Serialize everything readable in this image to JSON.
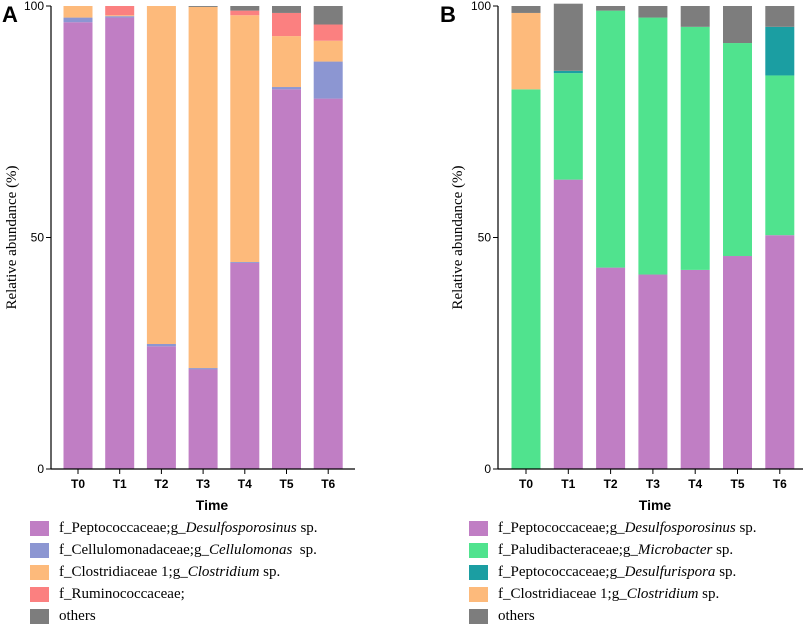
{
  "colors": {
    "purple": "#c07ec4",
    "blue": "#8c96d2",
    "orange": "#fdba7b",
    "red": "#fb8080",
    "gray": "#7d7d7d",
    "green": "#50e38e",
    "teal": "#1b9ea2"
  },
  "chart_data": [
    {
      "type": "bar",
      "stacked": true,
      "panel": "A",
      "xlabel": "Time",
      "ylabel": "Relative abundance (%)",
      "ylim": [
        0,
        100
      ],
      "yticks": [
        "0",
        "50",
        "100"
      ],
      "categories": [
        "T0",
        "T1",
        "T2",
        "T3",
        "T4",
        "T5",
        "T6"
      ],
      "series": [
        {
          "name": "f_Peptococcaceae;g_Desulfosporosinus sp.",
          "prefix": "f_Peptococcaceae;g_",
          "genus": "Desulfosporosinus",
          "suffix": " sp.",
          "color": "purple",
          "values": [
            96.5,
            97.5,
            26.5,
            21.5,
            44.5,
            82,
            80
          ]
        },
        {
          "name": "f_Cellulomonadaceae;g_Cellulomonas sp.",
          "prefix": "f_Cellulomonadaceae;g_",
          "genus": "Cellulomonas",
          "suffix": "  sp.",
          "color": "blue",
          "values": [
            1,
            0.3,
            0.5,
            0.3,
            0.2,
            0.5,
            8
          ]
        },
        {
          "name": "f_Clostridiaceae 1;g_Clostridium sp.",
          "prefix": "f_Clostridiaceae 1;g_",
          "genus": "Clostridium",
          "suffix": " sp.",
          "color": "orange",
          "values": [
            2.5,
            0.2,
            73,
            78,
            53.3,
            11,
            4.5
          ]
        },
        {
          "name": "f_Ruminococcaceae;",
          "prefix": "f_Ruminococcaceae;",
          "genus": "",
          "suffix": "",
          "color": "red",
          "values": [
            0,
            2,
            0,
            0,
            1,
            5,
            3.5
          ]
        },
        {
          "name": "others",
          "prefix": "others",
          "genus": "",
          "suffix": "",
          "color": "gray",
          "values": [
            0,
            0,
            0,
            0.2,
            1,
            1.5,
            4
          ]
        }
      ]
    },
    {
      "type": "bar",
      "stacked": true,
      "panel": "B",
      "xlabel": "Time",
      "ylabel": "Relative abundance (%)",
      "ylim": [
        0,
        100
      ],
      "yticks": [
        "0",
        "50",
        "100"
      ],
      "categories": [
        "T0",
        "T1",
        "T2",
        "T3",
        "T4",
        "T5",
        "T6"
      ],
      "series": [
        {
          "name": "f_Peptococcaceae;g_Desulfosporosinus sp.",
          "prefix": "f_Peptococcaceae;g_",
          "genus": "Desulfosporosinus",
          "suffix": " sp.",
          "color": "purple",
          "values": [
            0,
            62.5,
            43.5,
            42,
            43,
            46,
            50.5
          ]
        },
        {
          "name": "f_Paludibacteraceae;g_Microbacter sp.",
          "prefix": "f_Paludibacteraceae;g_",
          "genus": "Microbacter",
          "suffix": " sp.",
          "color": "green",
          "values": [
            82,
            23,
            55.5,
            55.5,
            52.5,
            46,
            34.5
          ]
        },
        {
          "name": "f_Peptococcaceae;g_Desulfurispora sp.",
          "prefix": "f_Peptococcaceae;g_",
          "genus": "Desulfurispora",
          "suffix": " sp.",
          "color": "teal",
          "values": [
            0,
            0.5,
            0,
            0,
            0,
            0,
            10.5
          ]
        },
        {
          "name": "f_Clostridiaceae 1;g_Clostridium sp.",
          "prefix": "f_Clostridiaceae 1;g_",
          "genus": "Clostridium",
          "suffix": " sp.",
          "color": "orange",
          "values": [
            16.5,
            0,
            0,
            0,
            0,
            0,
            0
          ]
        },
        {
          "name": "others",
          "prefix": "others",
          "genus": "",
          "suffix": "",
          "color": "gray",
          "values": [
            1.5,
            14.5,
            1,
            2.5,
            4.5,
            8,
            4.5
          ]
        }
      ]
    }
  ]
}
